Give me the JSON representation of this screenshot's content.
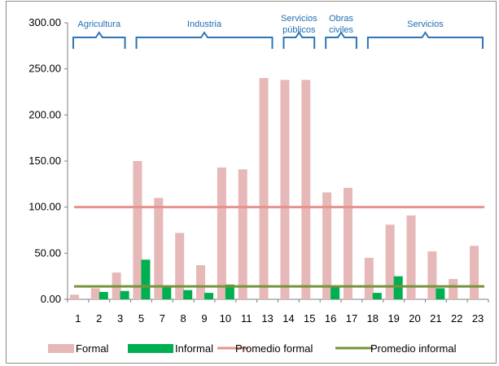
{
  "chart_data": {
    "type": "bar",
    "title": "",
    "xlabel": "",
    "ylabel": "",
    "ylim": [
      0,
      300
    ],
    "yticks": [
      "0.00",
      "50.00",
      "100.00",
      "150.00",
      "200.00",
      "250.00",
      "300.00"
    ],
    "categories": [
      "1",
      "2",
      "3",
      "5",
      "7",
      "8",
      "9",
      "10",
      "11",
      "13",
      "14",
      "15",
      "16",
      "17",
      "18",
      "19",
      "20",
      "21",
      "22",
      "23"
    ],
    "series": [
      {
        "name": "Formal",
        "color": "#e6b8b7",
        "values": [
          5,
          12,
          29,
          150,
          110,
          72,
          37,
          143,
          141,
          240,
          238,
          238,
          116,
          121,
          45,
          81,
          91,
          52,
          22,
          58
        ]
      },
      {
        "name": "Informal",
        "color": "#00b050",
        "values": [
          0,
          8,
          9,
          43,
          14,
          10,
          7,
          16,
          0,
          0,
          0,
          0,
          13,
          0,
          7,
          25,
          0,
          12,
          0,
          0
        ]
      }
    ],
    "reference_lines": [
      {
        "name": "Promedio formal",
        "value": 100,
        "color": "#e6928f"
      },
      {
        "name": "Promedio informal",
        "value": 14,
        "color": "#77933c"
      }
    ],
    "sector_groups": [
      {
        "label": "Agricultura",
        "from": "1",
        "to": "3"
      },
      {
        "label": "Industria",
        "from": "5",
        "to": "13"
      },
      {
        "label": "Servicios públicos",
        "from": "14",
        "to": "15"
      },
      {
        "label": "Obras civiles",
        "from": "16",
        "to": "17"
      },
      {
        "label": "Servicios",
        "from": "18",
        "to": "23"
      }
    ],
    "legend_position": "bottom",
    "grid": false
  }
}
